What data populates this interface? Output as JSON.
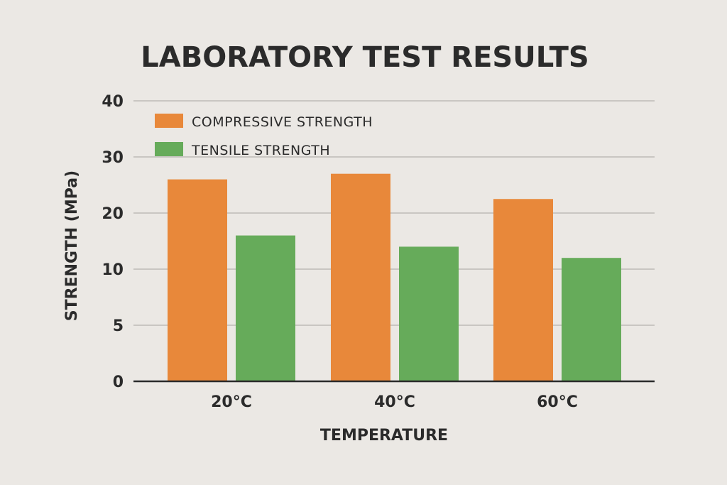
{
  "chart_data": {
    "type": "bar",
    "title": "LABORATORY TEST RESULTS",
    "xlabel": "TEMPERATURE",
    "ylabel": "STRENGTH (MPa)",
    "categories": [
      "20°C",
      "40°C",
      "60°C"
    ],
    "ytick_labels": [
      "0",
      "5",
      "10",
      "20",
      "30",
      "40"
    ],
    "ylim": [
      0,
      40
    ],
    "grid": true,
    "legend_position": "top-left",
    "series": [
      {
        "name": "COMPRESSIVE STRENGTH",
        "color": "#e8883a",
        "values": [
          26,
          27,
          22.5
        ]
      },
      {
        "name": "TENSILE STRENGTH",
        "color": "#66ab5a",
        "values": [
          16,
          14,
          12
        ]
      }
    ]
  }
}
